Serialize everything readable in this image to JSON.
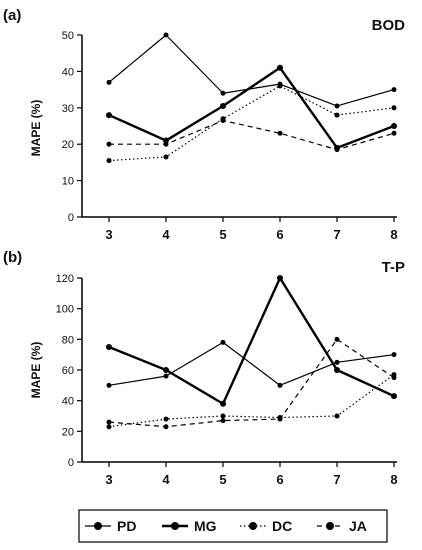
{
  "legend": [
    {
      "name": "PD",
      "style": "thin-solid"
    },
    {
      "name": "MG",
      "style": "thick-solid"
    },
    {
      "name": "DC",
      "style": "dotted"
    },
    {
      "name": "JA",
      "style": "dashed"
    }
  ],
  "chart_data": [
    {
      "type": "line",
      "panel_label": "(a)",
      "title": "BOD",
      "ylabel": "MAPE (%)",
      "xlabel": "",
      "x": [
        3,
        4,
        5,
        6,
        7,
        8
      ],
      "ylim": [
        0,
        50
      ],
      "yticks": [
        0,
        10,
        20,
        30,
        40,
        50
      ],
      "grid": false,
      "series": [
        {
          "name": "PD",
          "values": [
            37,
            50,
            34,
            36.5,
            30.5,
            35
          ]
        },
        {
          "name": "MG",
          "values": [
            28,
            21,
            30.5,
            41,
            19,
            25
          ]
        },
        {
          "name": "DC",
          "values": [
            15.5,
            16.5,
            27,
            36,
            28,
            30
          ]
        },
        {
          "name": "JA",
          "values": [
            20,
            20,
            26.5,
            23,
            18.5,
            23
          ]
        }
      ]
    },
    {
      "type": "line",
      "panel_label": "(b)",
      "title": "T-P",
      "ylabel": "MAPE (%)",
      "xlabel": "",
      "x": [
        3,
        4,
        5,
        6,
        7,
        8
      ],
      "ylim": [
        0,
        120
      ],
      "yticks": [
        0,
        20,
        40,
        60,
        80,
        100,
        120
      ],
      "grid": false,
      "series": [
        {
          "name": "PD",
          "values": [
            50,
            56,
            78,
            50,
            65,
            70
          ]
        },
        {
          "name": "MG",
          "values": [
            75,
            60,
            38,
            120,
            60,
            43
          ]
        },
        {
          "name": "DC",
          "values": [
            23,
            28,
            30,
            29,
            30,
            57
          ]
        },
        {
          "name": "JA",
          "values": [
            26,
            23,
            27,
            28,
            80,
            55
          ]
        }
      ]
    }
  ]
}
